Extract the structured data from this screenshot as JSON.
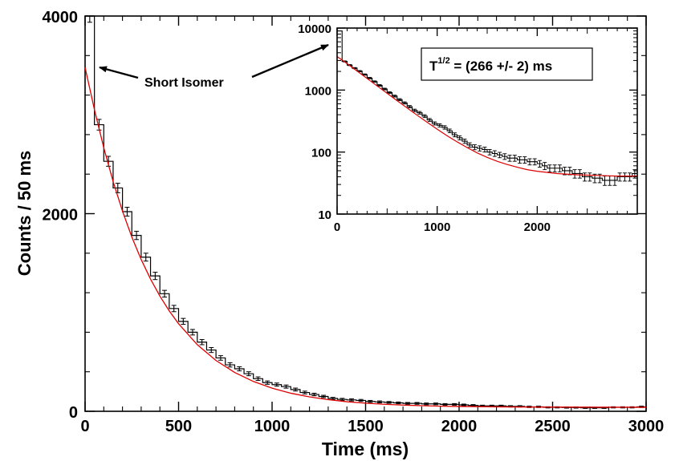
{
  "chart_data": [
    {
      "type": "line",
      "role": "main",
      "xlabel": "Time (ms)",
      "ylabel": "Counts / 50 ms",
      "xlim": [
        0,
        3000
      ],
      "ylim": [
        0,
        4000
      ],
      "x_ticks": [
        0,
        500,
        1000,
        1500,
        2000,
        2500,
        3000
      ],
      "x_tick_labels": [
        "0",
        "500",
        "1000",
        "1500",
        "2000",
        "2500",
        "3000"
      ],
      "y_ticks": [
        0,
        2000,
        4000
      ],
      "y_tick_labels": [
        "0",
        "2000",
        "4000"
      ],
      "grid": false,
      "series": [
        {
          "style": "histogram-with-error-bars",
          "color": "#000000",
          "x": [
            25,
            75,
            125,
            175,
            225,
            275,
            325,
            375,
            425,
            475,
            525,
            575,
            625,
            675,
            725,
            775,
            825,
            875,
            925,
            975,
            1025,
            1075,
            1125,
            1175,
            1225,
            1275,
            1325,
            1375,
            1425,
            1475,
            1525,
            1575,
            1625,
            1675,
            1725,
            1775,
            1825,
            1875,
            1925,
            1975,
            2025,
            2075,
            2125,
            2175,
            2225,
            2275,
            2325,
            2375,
            2425,
            2475,
            2525,
            2575,
            2625,
            2675,
            2725,
            2775,
            2825,
            2875,
            2925,
            2975
          ],
          "values": [
            4000,
            2900,
            2530,
            2260,
            2020,
            1780,
            1560,
            1370,
            1190,
            1040,
            910,
            800,
            700,
            620,
            540,
            470,
            430,
            380,
            330,
            290,
            270,
            250,
            220,
            190,
            170,
            150,
            130,
            120,
            115,
            110,
            100,
            95,
            90,
            85,
            80,
            80,
            75,
            75,
            70,
            70,
            65,
            60,
            55,
            55,
            55,
            50,
            50,
            45,
            45,
            40,
            40,
            38,
            38,
            35,
            35,
            35,
            40,
            40,
            40,
            45
          ],
          "error": [
            63,
            54,
            50,
            48,
            45,
            42,
            40,
            37,
            34,
            32,
            30,
            28,
            26,
            25,
            23,
            22,
            21,
            20,
            18,
            17,
            16,
            16,
            15,
            14,
            13,
            12,
            11,
            11,
            11,
            10,
            10,
            10,
            9,
            9,
            9,
            9,
            9,
            9,
            8,
            8,
            8,
            8,
            7,
            7,
            7,
            7,
            7,
            7,
            7,
            6,
            6,
            6,
            6,
            6,
            6,
            6,
            6,
            6,
            6,
            7
          ]
        },
        {
          "style": "fit-line",
          "color": "#e00000",
          "x": [
            0,
            50,
            100,
            150,
            200,
            250,
            300,
            350,
            400,
            450,
            500,
            600,
            700,
            800,
            900,
            1000,
            1100,
            1200,
            1300,
            1400,
            1500,
            1600,
            1700,
            1800,
            1900,
            2000,
            2200,
            2400,
            2600,
            2800,
            3000
          ],
          "values": [
            3480,
            3054,
            2667,
            2325,
            2026,
            1764,
            1536,
            1338,
            1166,
            1016,
            886,
            674,
            514,
            393,
            302,
            234,
            183,
            146,
            118,
            97,
            82,
            71,
            63,
            57,
            52,
            49,
            45,
            43,
            42,
            41,
            41
          ]
        }
      ],
      "annotations": [
        {
          "text": "Short Isomer"
        }
      ]
    },
    {
      "type": "line",
      "role": "inset",
      "yscale": "log",
      "xlim": [
        0,
        3000
      ],
      "ylim": [
        10,
        10000
      ],
      "x_ticks": [
        0,
        1000,
        2000
      ],
      "x_tick_labels": [
        "0",
        "1000",
        "2000"
      ],
      "y_ticks": [
        10,
        100,
        1000,
        10000
      ],
      "y_tick_labels": [
        "10",
        "100",
        "1000",
        "10000"
      ],
      "grid": false,
      "label_prefix": "T",
      "label_sup": "1/2",
      "label_rest": " = (266 +/- 2) ms"
    }
  ],
  "colors": {
    "data": "#000000",
    "fit": "#e00000",
    "arrow": "#000000"
  }
}
